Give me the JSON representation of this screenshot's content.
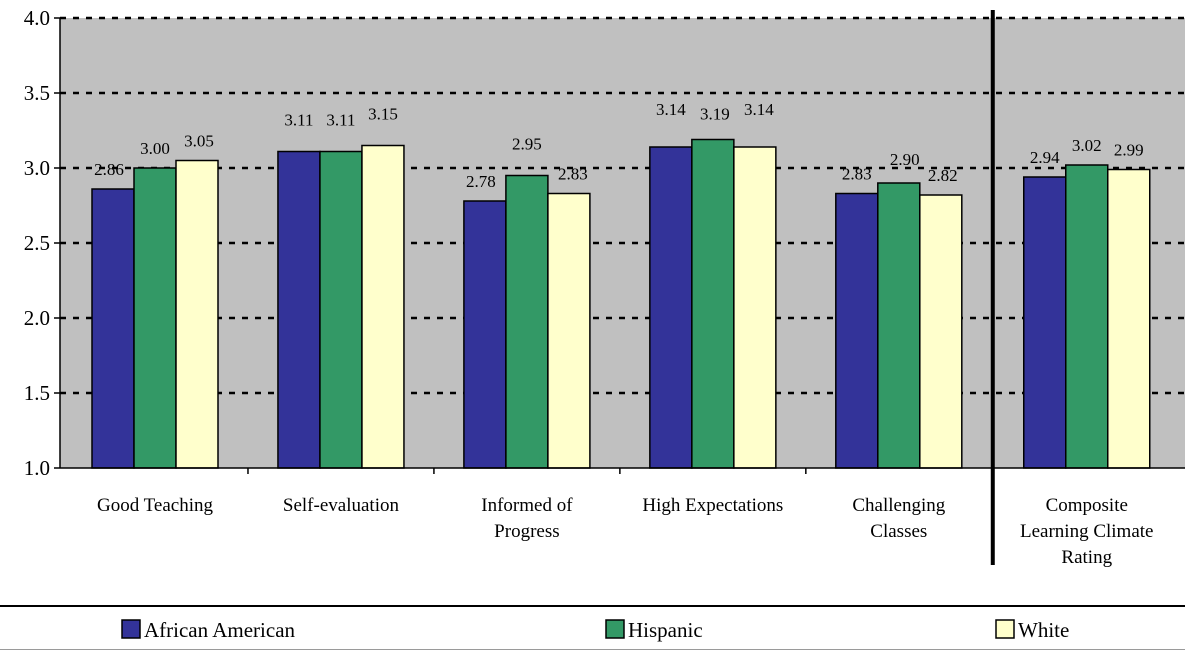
{
  "chart_data": {
    "type": "bar",
    "title": "",
    "xlabel": "",
    "ylabel": "",
    "ylim": [
      1.0,
      4.0
    ],
    "yticks": [
      "1.0",
      "1.5",
      "2.0",
      "2.5",
      "3.0",
      "3.5",
      "4.0"
    ],
    "grid": true,
    "grid_style": "dashed",
    "plot_background": "#c0c0c0",
    "legend_position": "bottom",
    "separator_before_category": "Composite Learning Climate Rating",
    "categories": [
      [
        "Good Teaching"
      ],
      [
        "Self-evaluation"
      ],
      [
        "Informed of",
        "Progress"
      ],
      [
        "High Expectations"
      ],
      [
        "Challenging",
        "Classes"
      ],
      [
        "Composite",
        "Learning Climate",
        "Rating"
      ]
    ],
    "series": [
      {
        "name": "African American",
        "color": "#333399",
        "values": [
          2.86,
          3.11,
          2.78,
          3.14,
          2.83,
          2.94
        ],
        "labels": [
          "2.86",
          "3.11",
          "2.78",
          "3.14",
          "2.83",
          "2.94"
        ]
      },
      {
        "name": "Hispanic",
        "color": "#339966",
        "values": [
          3.0,
          3.11,
          2.95,
          3.19,
          2.9,
          3.02
        ],
        "labels": [
          "3.00",
          "3.11",
          "2.95",
          "3.19",
          "2.90",
          "3.02"
        ]
      },
      {
        "name": "White",
        "color": "#ffffcc",
        "values": [
          3.05,
          3.15,
          2.83,
          3.14,
          2.82,
          2.99
        ],
        "labels": [
          "3.05",
          "3.15",
          "2.83",
          "3.14",
          "2.82",
          "2.99"
        ]
      }
    ]
  }
}
